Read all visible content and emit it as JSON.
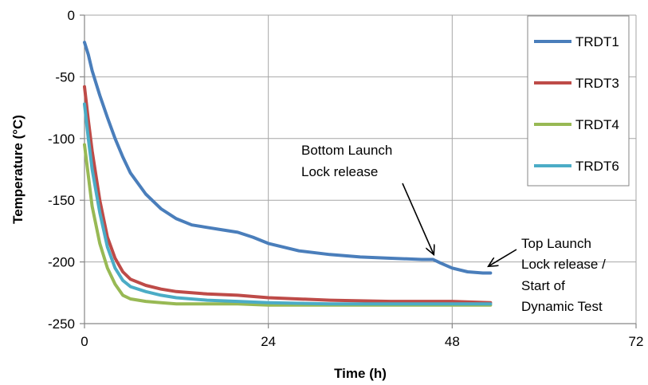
{
  "chart_data": {
    "type": "line",
    "title": "",
    "xlabel": "Time (h)",
    "ylabel": "Temperature (°C)",
    "xlim": [
      0,
      72
    ],
    "ylim": [
      -250,
      0
    ],
    "xticks": [
      0,
      24,
      48,
      72
    ],
    "yticks": [
      0,
      -50,
      -100,
      -150,
      -200,
      -250
    ],
    "xtick_labels": [
      "0",
      "24",
      "48",
      "72"
    ],
    "ytick_labels": [
      "0",
      "-50",
      "-100",
      "-150",
      "-200",
      "-250"
    ],
    "grid": true,
    "legend_position": "top-right",
    "series": [
      {
        "name": "TRDT1",
        "color": "#4a7ebb",
        "x": [
          0,
          0.5,
          1,
          2,
          3,
          4,
          5,
          6,
          8,
          10,
          12,
          14,
          16,
          18,
          20,
          22,
          24,
          28,
          32,
          36,
          40,
          44,
          45.5,
          46.5,
          48,
          50,
          52,
          53
        ],
        "y": [
          -22,
          -32,
          -45,
          -65,
          -83,
          -100,
          -115,
          -128,
          -145,
          -157,
          -165,
          -170,
          -172,
          -174,
          -176,
          -180,
          -185,
          -191,
          -194,
          -196,
          -197,
          -198,
          -198,
          -201,
          -205,
          -208,
          -209,
          -209
        ]
      },
      {
        "name": "TRDT3",
        "color": "#be4b48",
        "x": [
          0,
          0.5,
          1,
          2,
          3,
          4,
          5,
          6,
          8,
          10,
          12,
          16,
          20,
          24,
          32,
          40,
          48,
          53
        ],
        "y": [
          -58,
          -85,
          -110,
          -150,
          -180,
          -197,
          -208,
          -214,
          -219,
          -222,
          -224,
          -226,
          -227,
          -229,
          -231,
          -232,
          -232,
          -233
        ]
      },
      {
        "name": "TRDT4",
        "color": "#98b954",
        "x": [
          0,
          0.5,
          1,
          2,
          3,
          4,
          5,
          6,
          8,
          10,
          12,
          16,
          20,
          24,
          32,
          40,
          48,
          53
        ],
        "y": [
          -105,
          -130,
          -155,
          -185,
          -205,
          -218,
          -227,
          -230,
          -232,
          -233,
          -234,
          -234,
          -234,
          -235,
          -235,
          -235,
          -235,
          -235
        ]
      },
      {
        "name": "TRDT6",
        "color": "#4bacc6",
        "x": [
          0,
          0.5,
          1,
          2,
          3,
          4,
          5,
          6,
          8,
          10,
          12,
          16,
          20,
          24,
          32,
          40,
          48,
          53
        ],
        "y": [
          -72,
          -100,
          -125,
          -160,
          -188,
          -205,
          -215,
          -220,
          -224,
          -227,
          -229,
          -231,
          -232,
          -233,
          -234,
          -234,
          -234,
          -234
        ]
      }
    ],
    "annotations": [
      {
        "lines": [
          "Bottom Launch",
          "Lock release"
        ],
        "point": [
          45.5,
          -198
        ]
      },
      {
        "lines": [
          "Top Launch",
          "Lock release /",
          "Start of",
          "Dynamic Test"
        ],
        "point": [
          52.5,
          -203
        ]
      }
    ]
  }
}
